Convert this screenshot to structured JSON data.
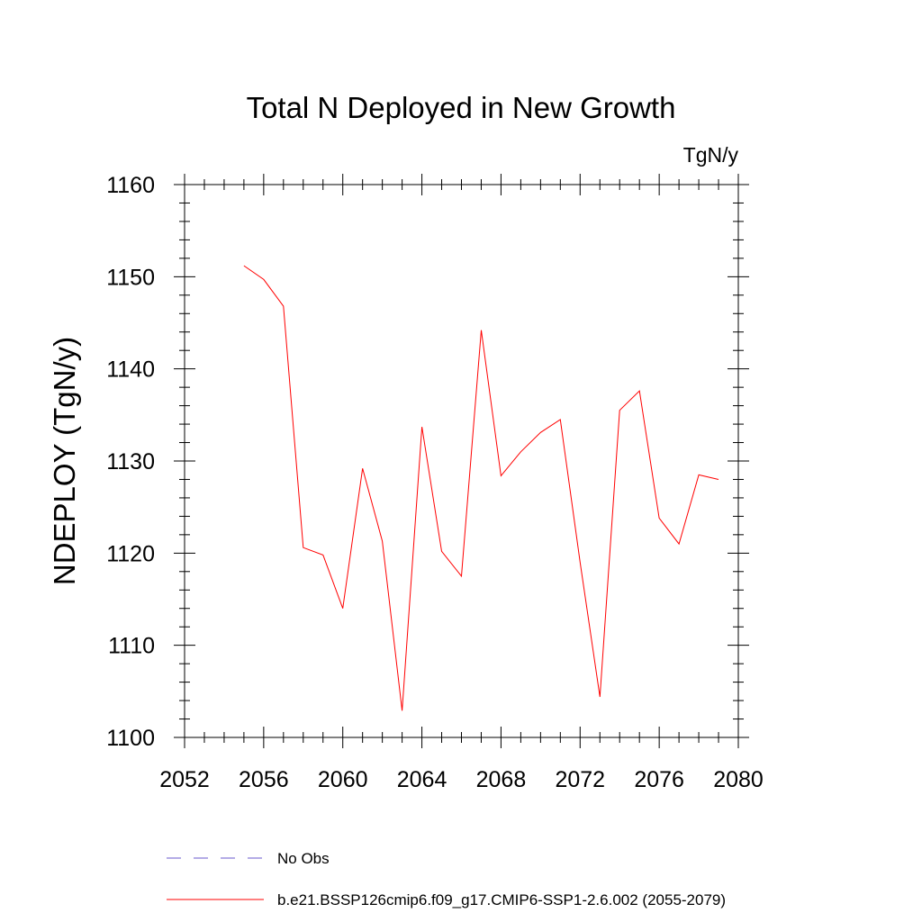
{
  "chart_data": {
    "type": "line",
    "title": "Total N Deployed in New Growth",
    "units": "TgN/y",
    "xlabel": "",
    "ylabel": "NDEPLOY  (TgN/y)",
    "xlim": [
      2052,
      2080
    ],
    "ylim": [
      1100,
      1160
    ],
    "x_ticks": [
      2052,
      2056,
      2060,
      2064,
      2068,
      2072,
      2076,
      2080
    ],
    "x_tick_labels": [
      "2052",
      "2056",
      "2060",
      "2064",
      "2068",
      "2072",
      "2076",
      "2080"
    ],
    "y_ticks": [
      1100,
      1110,
      1120,
      1130,
      1140,
      1150,
      1160
    ],
    "y_tick_labels": [
      "1100",
      "1110",
      "1120",
      "1130",
      "1140",
      "1150",
      "1160"
    ],
    "grid": false,
    "legend_position": "bottom",
    "series": [
      {
        "name": "b.e21.BSSP126cmip6.f09_g17.CMIP6-SSP1-2.6.002 (2055-2079)",
        "color": "#ff0000",
        "style": "solid",
        "x": [
          2055,
          2056,
          2057,
          2058,
          2059,
          2060,
          2061,
          2062,
          2063,
          2064,
          2065,
          2066,
          2067,
          2068,
          2069,
          2070,
          2071,
          2072,
          2073,
          2074,
          2075,
          2076,
          2077,
          2078,
          2079
        ],
        "y": [
          1151.2,
          1149.7,
          1146.8,
          1120.6,
          1119.8,
          1114.0,
          1129.2,
          1121.3,
          1102.9,
          1133.7,
          1120.2,
          1117.5,
          1144.2,
          1128.4,
          1131.0,
          1133.1,
          1134.5,
          1119.0,
          1104.4,
          1135.5,
          1137.6,
          1123.8,
          1121.0,
          1128.5,
          1128.0
        ]
      }
    ],
    "legend": [
      {
        "label": "No Obs",
        "color": "#6a5acd",
        "style": "dashed"
      },
      {
        "label": "b.e21.BSSP126cmip6.f09_g17.CMIP6-SSP1-2.6.002 (2055-2079)",
        "color": "#ff0000",
        "style": "solid"
      }
    ]
  }
}
